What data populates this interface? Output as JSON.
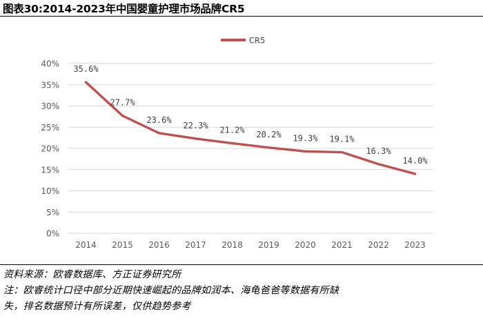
{
  "figure": {
    "title": "图表30:2014-2023年中国婴童护理市场品牌CR5",
    "source": "资料来源：欧睿数据库、方正证券研究所",
    "note_line1": "注：欧睿统计口径中部分近期快速崛起的品牌如润本、海龟爸爸等数据有所缺",
    "note_line2": "失，排名数据预计有所误差，仅供趋势参考"
  },
  "colors": {
    "line": "#C0504D",
    "grid": "#D9D9D9",
    "text": "#000000",
    "axis_text": "#595959"
  },
  "chart_data": {
    "type": "line",
    "title": "",
    "xlabel": "",
    "ylabel": "",
    "x": [
      "2014",
      "2015",
      "2016",
      "2017",
      "2018",
      "2019",
      "2020",
      "2021",
      "2022",
      "2023"
    ],
    "series": [
      {
        "name": "CR5",
        "values": [
          35.6,
          27.7,
          23.6,
          22.3,
          21.2,
          20.2,
          19.3,
          19.1,
          16.3,
          14.0
        ],
        "labels": [
          "35.6%",
          "27.7%",
          "23.6%",
          "22.3%",
          "21.2%",
          "20.2%",
          "19.3%",
          "19.1%",
          "16.3%",
          "14.0%"
        ]
      }
    ],
    "ylim": [
      0,
      40
    ],
    "yticks": [
      "0%",
      "5%",
      "10%",
      "15%",
      "20%",
      "25%",
      "30%",
      "35%",
      "40%"
    ],
    "grid": true,
    "legend": "top-center"
  }
}
